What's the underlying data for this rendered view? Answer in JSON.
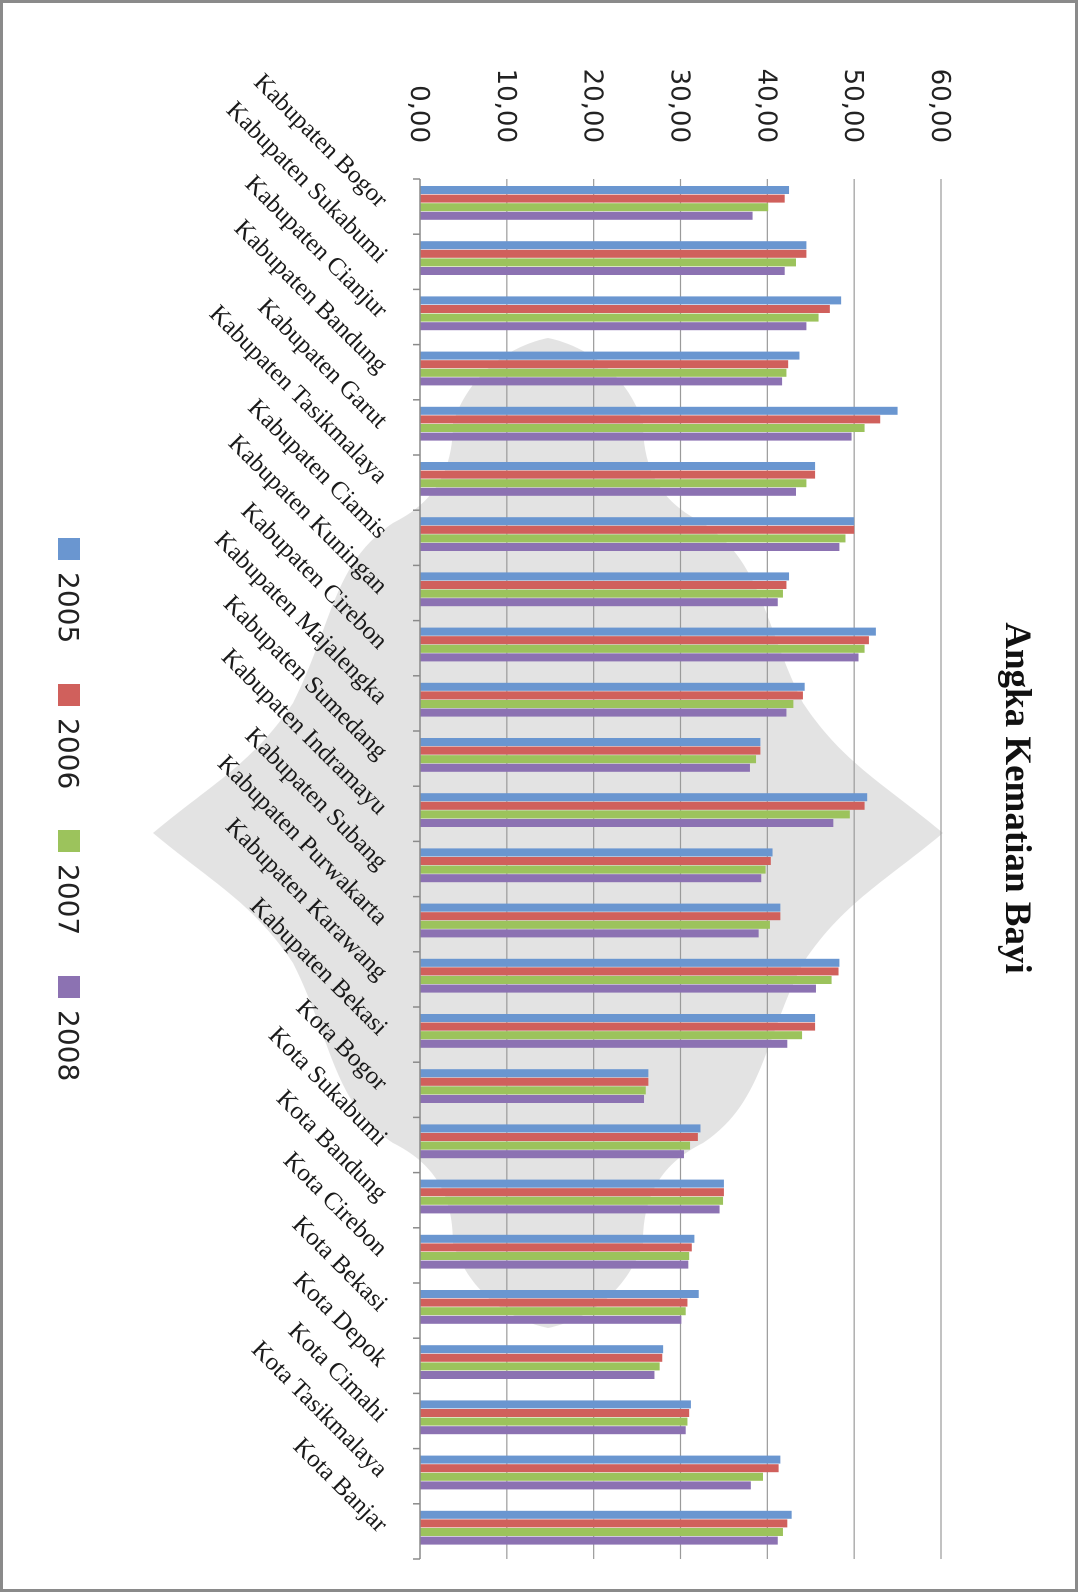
{
  "chart_data": {
    "type": "bar",
    "orientation": "horizontal",
    "title": "Angka Kematian Bayi",
    "xlabel": "",
    "ylabel": "",
    "xlim": [
      0,
      60
    ],
    "tick_labels": [
      "0,00",
      "10,00",
      "20,00",
      "30,00",
      "40,00",
      "50,00",
      "60,00"
    ],
    "grid": true,
    "legend_position": "bottom",
    "categories": [
      "Kabupaten Bogor",
      "Kabupaten Sukabumi",
      "Kabupaten Cianjur",
      "Kabupaten Bandung",
      "Kabupaten Garut",
      "Kabupaten Tasikmalaya",
      "Kabupaten Ciamis",
      "Kabupaten Kuningan",
      "Kabupaten Cirebon",
      "Kabupaten Majalengka",
      "Kabupaten Sumedang",
      "Kabupaten Indramayu",
      "Kabupaten Subang",
      "Kabupaten Purwakarta",
      "Kabupaten Karawang",
      "Kabupaten Bekasi",
      "Kota Bogor",
      "Kota Sukabumi",
      "Kota Bandung",
      "Kota Cirebon",
      "Kota Bekasi",
      "Kota Depok",
      "Kota Cimahi",
      "Kota Tasikmalaya",
      "Kota Banjar"
    ],
    "series": [
      {
        "name": "2005",
        "color": "#6a96d0",
        "values": [
          42.5,
          44.5,
          48.5,
          43.7,
          55.0,
          45.5,
          50.0,
          42.5,
          52.5,
          44.3,
          39.2,
          51.5,
          40.6,
          41.5,
          48.3,
          45.5,
          26.3,
          32.3,
          35.0,
          31.6,
          32.1,
          28.0,
          31.2,
          41.5,
          42.8
        ]
      },
      {
        "name": "2006",
        "color": "#d0605c",
        "values": [
          42.0,
          44.5,
          47.2,
          42.4,
          53.0,
          45.5,
          50.0,
          42.2,
          51.7,
          44.1,
          39.2,
          51.2,
          40.4,
          41.5,
          48.2,
          45.5,
          26.3,
          32.0,
          35.0,
          31.3,
          30.8,
          27.9,
          31.0,
          41.3,
          42.3
        ]
      },
      {
        "name": "2007",
        "color": "#9cc35c",
        "values": [
          40.1,
          43.3,
          45.9,
          42.2,
          51.2,
          44.5,
          49.0,
          41.8,
          51.2,
          43.0,
          38.7,
          49.5,
          39.8,
          40.3,
          47.4,
          44.0,
          26.0,
          31.1,
          34.9,
          31.0,
          30.6,
          27.6,
          30.8,
          39.5,
          41.8
        ]
      },
      {
        "name": "2008",
        "color": "#8c72b2",
        "values": [
          38.3,
          42.0,
          44.5,
          41.7,
          49.7,
          43.3,
          48.3,
          41.2,
          50.5,
          42.2,
          38.0,
          47.6,
          39.3,
          39.0,
          45.6,
          42.3,
          25.8,
          30.4,
          34.5,
          30.9,
          30.1,
          27.0,
          30.6,
          38.1,
          41.2
        ]
      }
    ]
  }
}
